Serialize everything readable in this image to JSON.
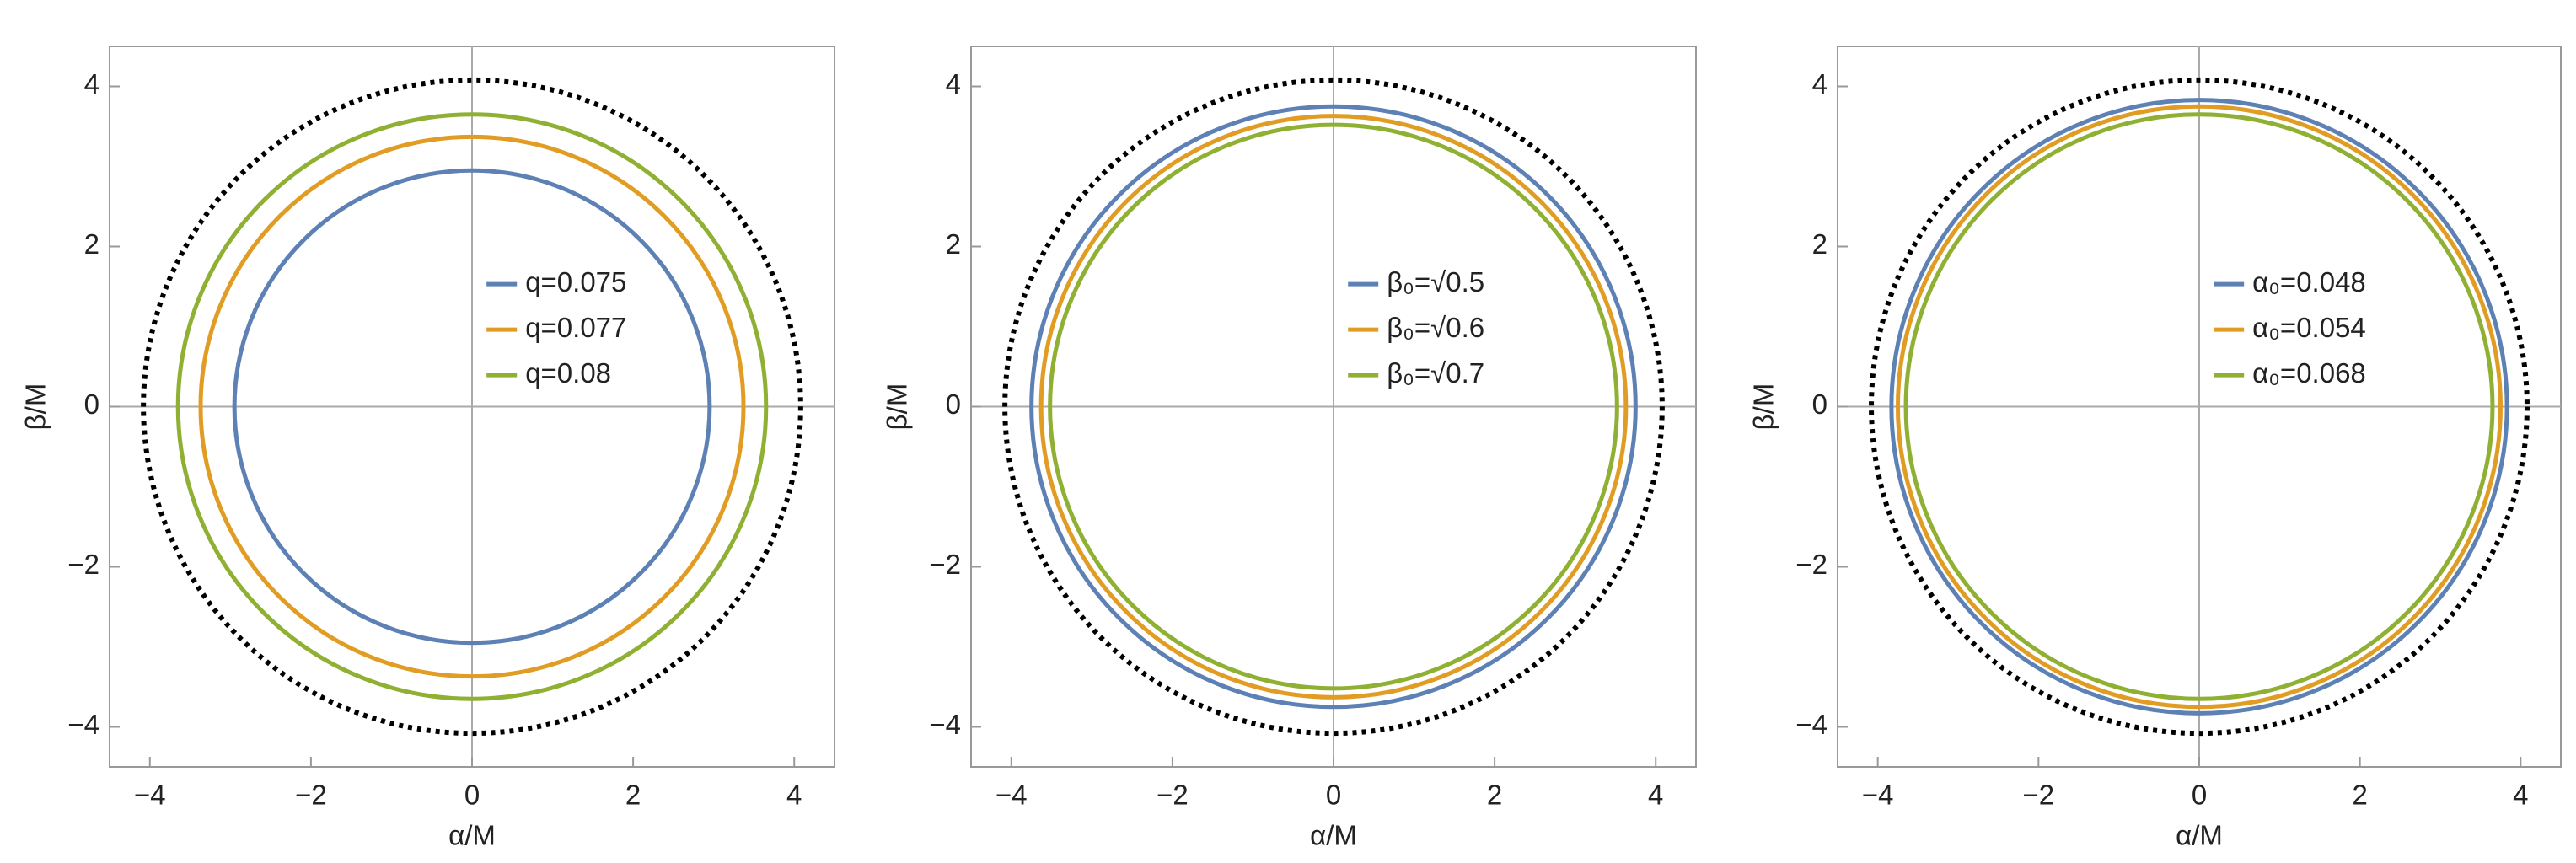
{
  "chart_data": [
    {
      "type": "circle",
      "xlabel": "α/M",
      "ylabel": "β/M",
      "xlim": [
        -4.5,
        4.5
      ],
      "ylim": [
        -4.5,
        4.5
      ],
      "xticks": [
        {
          "value": -4,
          "label": "−4"
        },
        {
          "value": -2,
          "label": "−2"
        },
        0,
        2,
        4
      ],
      "yticks": [
        {
          "value": -4,
          "label": "−4"
        },
        {
          "value": -2,
          "label": "−2"
        },
        0,
        2,
        4
      ],
      "reference": {
        "radius": 4.08,
        "color": "#000000",
        "dash": "dotted"
      },
      "series": [
        {
          "name": "q=0.075",
          "color": "#5e81b5",
          "radius": 2.95
        },
        {
          "name": "q=0.077",
          "color": "#e19c24",
          "radius": 3.37
        },
        {
          "name": "q=0.08",
          "color": "#8fb032",
          "radius": 3.65
        }
      ]
    },
    {
      "type": "circle",
      "xlabel": "α/M",
      "ylabel": "β/M",
      "xlim": [
        -4.5,
        4.5
      ],
      "ylim": [
        -4.5,
        4.5
      ],
      "xticks": [
        {
          "value": -4,
          "label": "−4"
        },
        {
          "value": -2,
          "label": "−2"
        },
        0,
        2,
        4
      ],
      "yticks": [
        {
          "value": -4,
          "label": "−4"
        },
        {
          "value": -2,
          "label": "−2"
        },
        0,
        2,
        4
      ],
      "reference": {
        "radius": 4.08,
        "color": "#000000",
        "dash": "dotted"
      },
      "series": [
        {
          "name": "β₀=√0.5",
          "color": "#5e81b5",
          "radius": 3.75
        },
        {
          "name": "β₀=√0.6",
          "color": "#e19c24",
          "radius": 3.63
        },
        {
          "name": "β₀=√0.7",
          "color": "#8fb032",
          "radius": 3.52
        }
      ]
    },
    {
      "type": "circle",
      "xlabel": "α/M",
      "ylabel": "β/M",
      "xlim": [
        -4.5,
        4.5
      ],
      "ylim": [
        -4.5,
        4.5
      ],
      "xticks": [
        {
          "value": -4,
          "label": "−4"
        },
        {
          "value": -2,
          "label": "−2"
        },
        0,
        2,
        4
      ],
      "yticks": [
        {
          "value": -4,
          "label": "−4"
        },
        {
          "value": -2,
          "label": "−2"
        },
        0,
        2,
        4
      ],
      "reference": {
        "radius": 4.08,
        "color": "#000000",
        "dash": "dotted"
      },
      "series": [
        {
          "name": "α₀=0.048",
          "color": "#5e81b5",
          "radius": 3.83
        },
        {
          "name": "α₀=0.054",
          "color": "#e19c24",
          "radius": 3.75
        },
        {
          "name": "α₀=0.068",
          "color": "#8fb032",
          "radius": 3.65
        }
      ]
    }
  ]
}
